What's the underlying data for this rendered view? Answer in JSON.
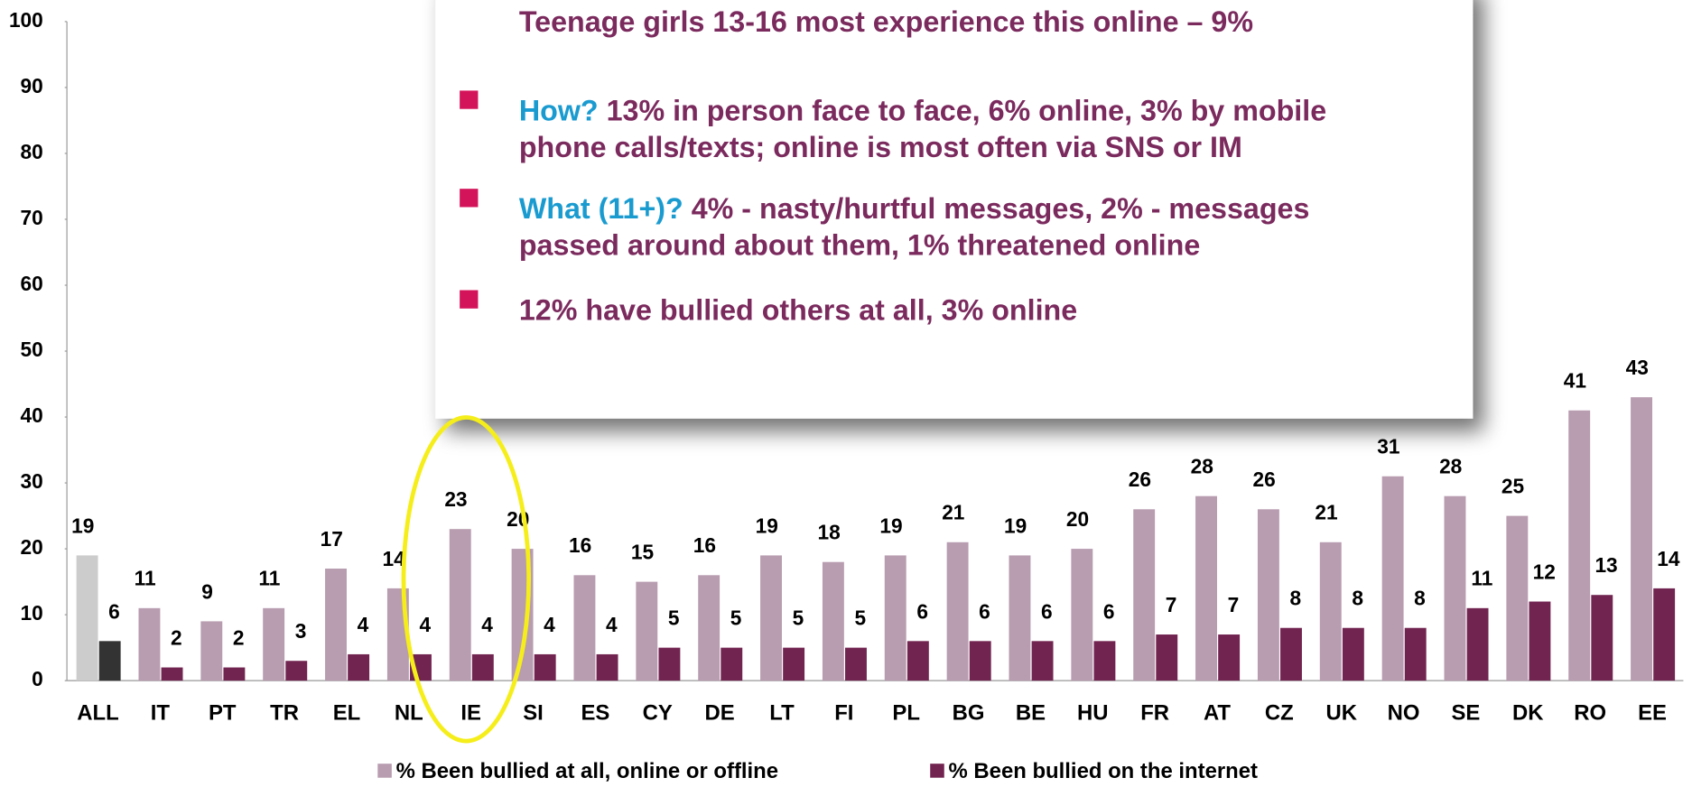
{
  "chart_data": {
    "type": "bar",
    "categories": [
      "ALL",
      "IT",
      "PT",
      "TR",
      "EL",
      "NL",
      "IE",
      "SI",
      "ES",
      "CY",
      "DE",
      "LT",
      "FI",
      "PL",
      "BG",
      "BE",
      "HU",
      "FR",
      "AT",
      "CZ",
      "UK",
      "NO",
      "SE",
      "DK",
      "RO",
      "EE"
    ],
    "series": [
      {
        "name": "% Been bullied at all, online or offline",
        "color": "#b89cb0",
        "colors": [
          "#cccccc",
          "#b89cb0",
          "#b89cb0",
          "#b89cb0",
          "#b89cb0",
          "#b89cb0",
          "#b89cb0",
          "#b89cb0",
          "#b89cb0",
          "#b89cb0",
          "#b89cb0",
          "#b89cb0",
          "#b89cb0",
          "#b89cb0",
          "#b89cb0",
          "#b89cb0",
          "#b89cb0",
          "#b89cb0",
          "#b89cb0",
          "#b89cb0",
          "#b89cb0",
          "#b89cb0",
          "#b89cb0",
          "#b89cb0",
          "#b89cb0",
          "#b89cb0"
        ],
        "values": [
          19,
          11,
          9,
          11,
          17,
          14,
          23,
          20,
          16,
          15,
          16,
          19,
          18,
          19,
          21,
          19,
          20,
          26,
          28,
          26,
          21,
          31,
          28,
          25,
          41,
          43
        ]
      },
      {
        "name": "% Been bullied on the internet",
        "color": "#722451",
        "colors": [
          "#333333",
          "#722451",
          "#722451",
          "#722451",
          "#722451",
          "#722451",
          "#722451",
          "#722451",
          "#722451",
          "#722451",
          "#722451",
          "#722451",
          "#722451",
          "#722451",
          "#722451",
          "#722451",
          "#722451",
          "#722451",
          "#722451",
          "#722451",
          "#722451",
          "#722451",
          "#722451",
          "#722451",
          "#722451",
          "#722451"
        ],
        "values": [
          6,
          2,
          2,
          3,
          4,
          4,
          4,
          4,
          4,
          5,
          5,
          5,
          5,
          6,
          6,
          6,
          6,
          7,
          7,
          8,
          8,
          8,
          11,
          12,
          13,
          14
        ]
      }
    ],
    "ylim": [
      0,
      100
    ],
    "yticks": [
      0,
      10,
      20,
      30,
      40,
      50,
      60,
      70,
      80,
      90,
      100
    ]
  },
  "callout": {
    "heading": "Teenage girls 13-16 most experience this online – 9%",
    "bullets": [
      {
        "lead": "How?",
        "lines": [
          "13% in person face to face, 6% online, 3% by mobile",
          "phone calls/texts; online is most often via SNS or IM"
        ]
      },
      {
        "lead": "What (11+)?",
        "lines": [
          "4% - nasty/hurtful messages, 2% - messages",
          "passed around about them, 1% threatened online"
        ]
      },
      {
        "lead": null,
        "lines": [
          "12% have bullied others at all, 3% online"
        ]
      }
    ]
  }
}
